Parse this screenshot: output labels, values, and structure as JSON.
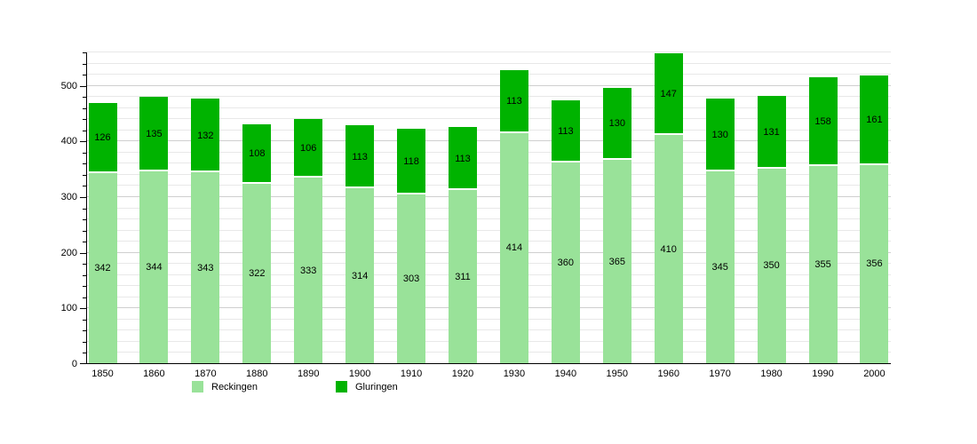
{
  "chart_data": {
    "type": "bar",
    "stacked": true,
    "title": "",
    "xlabel": "",
    "ylabel": "",
    "categories": [
      "1850",
      "1860",
      "1870",
      "1880",
      "1890",
      "1900",
      "1910",
      "1920",
      "1930",
      "1940",
      "1950",
      "1960",
      "1970",
      "1980",
      "1990",
      "2000"
    ],
    "series": [
      {
        "name": "Reckingen",
        "color": "#99E299",
        "values": [
          342,
          344,
          343,
          322,
          333,
          314,
          303,
          311,
          414,
          360,
          365,
          410,
          345,
          350,
          355,
          356
        ]
      },
      {
        "name": "Gluringen",
        "color": "#00B300",
        "values": [
          126,
          135,
          132,
          108,
          106,
          113,
          118,
          113,
          113,
          113,
          130,
          147,
          130,
          131,
          158,
          161
        ]
      }
    ],
    "ylim": [
      0,
      560
    ],
    "ytick_labels": [
      "0",
      "100",
      "200",
      "300",
      "400",
      "500"
    ],
    "ytick_values": [
      0,
      100,
      200,
      300,
      400,
      500
    ],
    "minor_step": 20,
    "grid": "on",
    "grid_minor_color": "#e8e8e8",
    "grid_major_color": "#cfcfcf",
    "axis_color": "#000000",
    "background_color": "#ffffff",
    "bar_value_labels": "shown inside segments",
    "legend_position": "bottom"
  }
}
